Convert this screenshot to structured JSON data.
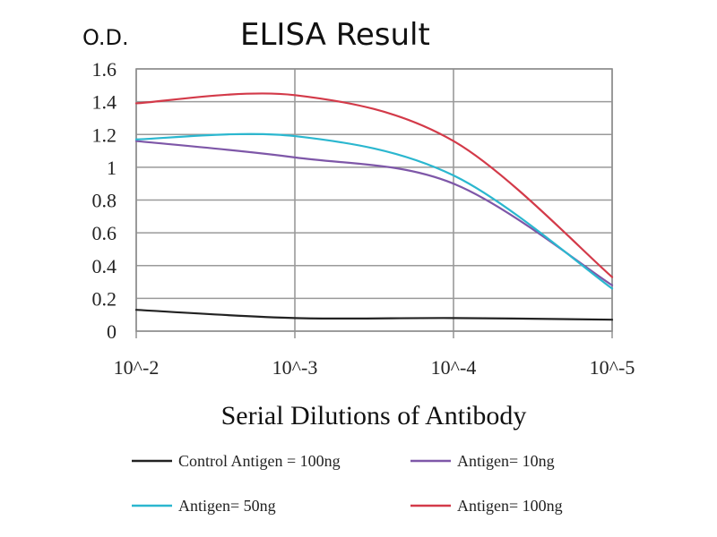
{
  "chart_data": {
    "type": "line",
    "title": "ELISA Result",
    "ylabel": "O.D.",
    "xlabel": "Serial Dilutions of Antibody",
    "x_scale": "log",
    "x": [
      0.01,
      0.001,
      0.0001,
      1e-05
    ],
    "x_tick_labels": [
      "10^-2",
      "10^-3",
      "10^-4",
      "10^-5"
    ],
    "y_ticks": [
      0,
      0.2,
      0.4,
      0.6,
      0.8,
      1,
      1.2,
      1.4,
      1.6
    ],
    "y_tick_labels": [
      "0",
      "0.2",
      "0.4",
      "0.6",
      "0.8",
      "1",
      "1.2",
      "1.4",
      "1.6"
    ],
    "ylim": [
      0,
      1.6
    ],
    "grid": true,
    "legend_position": "bottom",
    "series": [
      {
        "name": "Control Antigen = 100ng",
        "color": "#222222",
        "values": [
          0.13,
          0.08,
          0.08,
          0.07
        ]
      },
      {
        "name": "Antigen= 10ng",
        "color": "#7e57a8",
        "values": [
          1.16,
          1.06,
          0.9,
          0.28
        ]
      },
      {
        "name": "Antigen= 50ng",
        "color": "#2bb7cf",
        "values": [
          1.17,
          1.19,
          0.95,
          0.26
        ]
      },
      {
        "name": "Antigen= 100ng",
        "color": "#d33a49",
        "values": [
          1.39,
          1.44,
          1.16,
          0.33
        ]
      }
    ]
  }
}
